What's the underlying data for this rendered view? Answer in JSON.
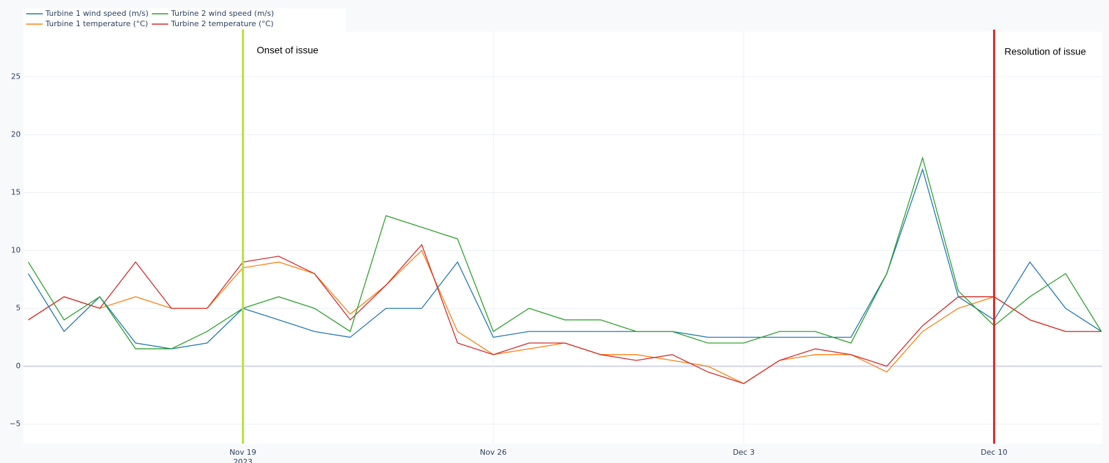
{
  "chart_data": {
    "type": "line",
    "x": [
      "2023-11-13",
      "2023-11-14",
      "2023-11-15",
      "2023-11-16",
      "2023-11-17",
      "2023-11-18",
      "2023-11-19",
      "2023-11-20",
      "2023-11-21",
      "2023-11-22",
      "2023-11-23",
      "2023-11-24",
      "2023-11-25",
      "2023-11-26",
      "2023-11-27",
      "2023-11-28",
      "2023-11-29",
      "2023-11-30",
      "2023-12-01",
      "2023-12-02",
      "2023-12-03",
      "2023-12-04",
      "2023-12-05",
      "2023-12-06",
      "2023-12-07",
      "2023-12-08",
      "2023-12-09",
      "2023-12-10",
      "2023-12-11",
      "2023-12-12",
      "2023-12-13"
    ],
    "series": [
      {
        "name": "Turbine 1 wind speed (m/s)",
        "color": "#1f77b4",
        "values": [
          8,
          3,
          6,
          2,
          1.5,
          2,
          5,
          4,
          3,
          2.5,
          5,
          5,
          9,
          2.5,
          3,
          3,
          3,
          3,
          3,
          2.5,
          2.5,
          2.5,
          2.5,
          2.5,
          8,
          17,
          6,
          4,
          9,
          5,
          3
        ]
      },
      {
        "name": "Turbine 1 temperature (°C)",
        "color": "#ff7f0e",
        "values": [
          4,
          6,
          5,
          6,
          5,
          5,
          8.5,
          9,
          8,
          4.5,
          7,
          10,
          3,
          1,
          1.5,
          2,
          1,
          1,
          0.5,
          0,
          -1.5,
          0.5,
          1,
          1,
          -0.5,
          3,
          5,
          6,
          4,
          3,
          3
        ]
      },
      {
        "name": "Turbine 2 wind speed (m/s)",
        "color": "#2ca02c",
        "values": [
          9,
          4,
          6,
          1.5,
          1.5,
          3,
          5,
          6,
          5,
          3,
          13,
          12,
          11,
          3,
          5,
          4,
          4,
          3,
          3,
          2,
          2,
          3,
          3,
          2,
          8,
          18,
          6.5,
          3.5,
          6,
          8,
          3
        ]
      },
      {
        "name": "Turbine 2 temperature (°C)",
        "color": "#d62728",
        "values": [
          4,
          6,
          5,
          9,
          5,
          5,
          9,
          9.5,
          8,
          4,
          7,
          10.5,
          2,
          1,
          2,
          2,
          1,
          0.5,
          1,
          -0.5,
          -1.5,
          0.5,
          1.5,
          1,
          0,
          3.5,
          6,
          6,
          4,
          3,
          3
        ]
      }
    ],
    "xlim": [
      "2023-11-13",
      "2023-12-13"
    ],
    "xticks": [
      {
        "value": "2023-11-19",
        "label": "Nov 19",
        "sublabel": "2023"
      },
      {
        "value": "2023-11-26",
        "label": "Nov 26"
      },
      {
        "value": "2023-12-03",
        "label": "Dec 3"
      },
      {
        "value": "2023-12-10",
        "label": "Dec 10"
      }
    ],
    "ylim": [
      -6.7,
      28.9
    ],
    "yticks": [
      {
        "value": -5,
        "label": "−5"
      },
      0,
      5,
      10,
      15,
      20,
      25
    ],
    "grid": true,
    "legend": "top-left",
    "annotations": [
      {
        "x": "2023-11-19",
        "text": "Onset of issue",
        "color": "#b5e03c"
      },
      {
        "x": "2023-12-10",
        "text": "Resolution of issue",
        "color": "#d62728"
      }
    ]
  }
}
